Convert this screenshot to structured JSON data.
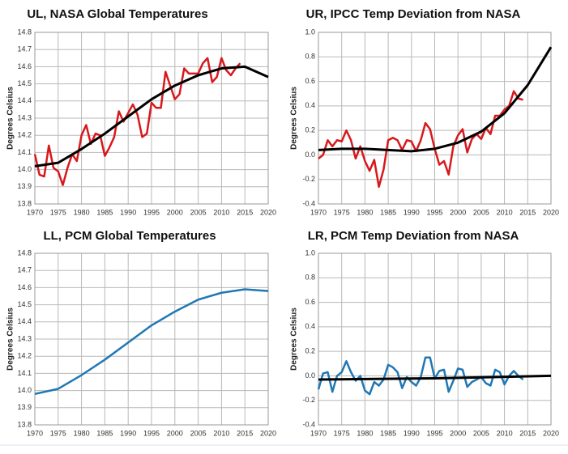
{
  "chart_data": [
    {
      "type": "line",
      "title": "UL, NASA Global Temperatures",
      "y_label": "Degrees Celsius",
      "xlim": [
        1970,
        2020
      ],
      "xticks": [
        1970,
        1975,
        1980,
        1985,
        1990,
        1995,
        2000,
        2005,
        2010,
        2015,
        2020
      ],
      "ylim": [
        13.8,
        14.8
      ],
      "yticks": [
        13.8,
        13.9,
        {
          "value": 14,
          "label": "14.0"
        },
        14.1,
        14.2,
        14.3,
        14.4,
        14.5,
        14.6,
        14.7,
        14.8
      ],
      "grid": true,
      "series": [
        {
          "color": "#d7191c",
          "x": [
            1970,
            1971,
            1972,
            1973,
            1974,
            1975,
            1976,
            1977,
            1978,
            1979,
            1980,
            1981,
            1982,
            1983,
            1984,
            1985,
            1986,
            1987,
            1988,
            1989,
            1990,
            1991,
            1992,
            1993,
            1994,
            1995,
            1996,
            1997,
            1998,
            1999,
            2000,
            2001,
            2002,
            2003,
            2004,
            2005,
            2006,
            2007,
            2008,
            2009,
            2010,
            2011,
            2012,
            2013,
            2014
          ],
          "values": [
            14.09,
            13.97,
            13.96,
            14.14,
            14.01,
            13.99,
            13.91,
            14.01,
            14.09,
            14.05,
            14.2,
            14.26,
            14.15,
            14.21,
            14.2,
            14.08,
            14.13,
            14.19,
            14.34,
            14.28,
            14.33,
            14.38,
            14.32,
            14.19,
            14.21,
            14.39,
            14.36,
            14.36,
            14.57,
            14.49,
            14.41,
            14.44,
            14.59,
            14.56,
            14.56,
            14.56,
            14.62,
            14.65,
            14.51,
            14.54,
            14.65,
            14.58,
            14.55,
            14.59,
            14.62
          ]
        },
        {
          "color": "#000000",
          "x": [
            1970,
            1975,
            1980,
            1985,
            1990,
            1995,
            2000,
            2005,
            2010,
            2015,
            2020
          ],
          "values": [
            14.02,
            14.04,
            14.12,
            14.21,
            14.31,
            14.41,
            14.49,
            14.55,
            14.59,
            14.6,
            14.54
          ]
        }
      ]
    },
    {
      "type": "line",
      "title": "UR, IPCC Temp Deviation from NASA",
      "y_label": "Degrees Celsius",
      "xlim": [
        1970,
        2020
      ],
      "xticks": [
        1970,
        1975,
        1980,
        1985,
        1990,
        1995,
        2000,
        2005,
        2010,
        2015,
        2020
      ],
      "ylim": [
        -0.4,
        1.0
      ],
      "yticks": [
        -0.4,
        -0.2,
        {
          "value": 0,
          "label": "0.0"
        },
        0.2,
        0.4,
        0.6,
        0.8,
        {
          "value": 1,
          "label": "1.0"
        }
      ],
      "grid": true,
      "series": [
        {
          "color": "#d7191c",
          "x": [
            1970,
            1971,
            1972,
            1973,
            1974,
            1975,
            1976,
            1977,
            1978,
            1979,
            1980,
            1981,
            1982,
            1983,
            1984,
            1985,
            1986,
            1987,
            1988,
            1989,
            1990,
            1991,
            1992,
            1993,
            1994,
            1995,
            1996,
            1997,
            1998,
            1999,
            2000,
            2001,
            2002,
            2003,
            2004,
            2005,
            2006,
            2007,
            2008,
            2009,
            2010,
            2011,
            2012,
            2013,
            2014
          ],
          "values": [
            -0.03,
            0.0,
            0.12,
            0.07,
            0.12,
            0.11,
            0.2,
            0.12,
            -0.03,
            0.07,
            -0.05,
            -0.13,
            -0.04,
            -0.26,
            -0.12,
            0.12,
            0.14,
            0.12,
            0.04,
            0.12,
            0.11,
            0.03,
            0.12,
            0.26,
            0.21,
            0.05,
            -0.08,
            -0.05,
            -0.16,
            0.07,
            0.16,
            0.21,
            0.02,
            0.13,
            0.17,
            0.13,
            0.22,
            0.17,
            0.32,
            0.32,
            0.37,
            0.4,
            0.52,
            0.46,
            0.45
          ]
        },
        {
          "color": "#000000",
          "x": [
            1970,
            1975,
            1980,
            1985,
            1990,
            1995,
            2000,
            2005,
            2010,
            2015,
            2020
          ],
          "values": [
            0.04,
            0.05,
            0.05,
            0.04,
            0.03,
            0.05,
            0.1,
            0.19,
            0.34,
            0.57,
            0.88
          ]
        }
      ]
    },
    {
      "type": "line",
      "title": "LL, PCM Global Temperatures",
      "y_label": "Degrees Celsius",
      "xlim": [
        1970,
        2020
      ],
      "xticks": [
        1970,
        1975,
        1980,
        1985,
        1990,
        1995,
        2000,
        2005,
        2010,
        2015,
        2020
      ],
      "ylim": [
        13.8,
        14.8
      ],
      "yticks": [
        13.8,
        13.9,
        {
          "value": 14,
          "label": "14.0"
        },
        14.1,
        14.2,
        14.3,
        14.4,
        14.5,
        14.6,
        14.7,
        14.8
      ],
      "grid": true,
      "series": [
        {
          "color": "#1f78b4",
          "x": [
            1970,
            1975,
            1980,
            1985,
            1990,
            1995,
            2000,
            2005,
            2010,
            2015,
            2020
          ],
          "values": [
            13.98,
            14.01,
            14.09,
            14.18,
            14.28,
            14.38,
            14.46,
            14.53,
            14.57,
            14.59,
            14.58
          ]
        }
      ]
    },
    {
      "type": "line",
      "title": "LR, PCM Temp Deviation from NASA",
      "y_label": "Degrees Celsius",
      "xlim": [
        1970,
        2020
      ],
      "xticks": [
        1970,
        1975,
        1980,
        1985,
        1990,
        1995,
        2000,
        2005,
        2010,
        2015,
        2020
      ],
      "ylim": [
        -0.4,
        1.0
      ],
      "yticks": [
        -0.4,
        -0.2,
        {
          "value": 0,
          "label": "0.0"
        },
        0.2,
        0.4,
        0.6,
        0.8,
        {
          "value": 1,
          "label": "1.0"
        }
      ],
      "grid": true,
      "series": [
        {
          "color": "#1f78b4",
          "x": [
            1970,
            1971,
            1972,
            1973,
            1974,
            1975,
            1976,
            1977,
            1978,
            1979,
            1980,
            1981,
            1982,
            1983,
            1984,
            1985,
            1986,
            1987,
            1988,
            1989,
            1990,
            1991,
            1992,
            1993,
            1994,
            1995,
            1996,
            1997,
            1998,
            1999,
            2000,
            2001,
            2002,
            2003,
            2004,
            2005,
            2006,
            2007,
            2008,
            2009,
            2010,
            2011,
            2012,
            2013,
            2014
          ],
          "values": [
            -0.11,
            0.02,
            0.03,
            -0.13,
            0.0,
            0.03,
            0.12,
            0.03,
            -0.04,
            0.0,
            -0.12,
            -0.15,
            -0.05,
            -0.08,
            -0.03,
            0.09,
            0.07,
            0.03,
            -0.1,
            -0.01,
            -0.05,
            -0.08,
            -0.01,
            0.15,
            0.15,
            -0.02,
            0.04,
            0.05,
            -0.13,
            -0.04,
            0.06,
            0.05,
            -0.09,
            -0.05,
            -0.03,
            -0.01,
            -0.06,
            -0.08,
            0.05,
            0.03,
            -0.07,
            0.0,
            0.04,
            0.0,
            -0.03
          ]
        },
        {
          "color": "#000000",
          "x": [
            1970,
            1995,
            2020
          ],
          "values": [
            -0.03,
            -0.02,
            0.0
          ]
        }
      ]
    }
  ]
}
